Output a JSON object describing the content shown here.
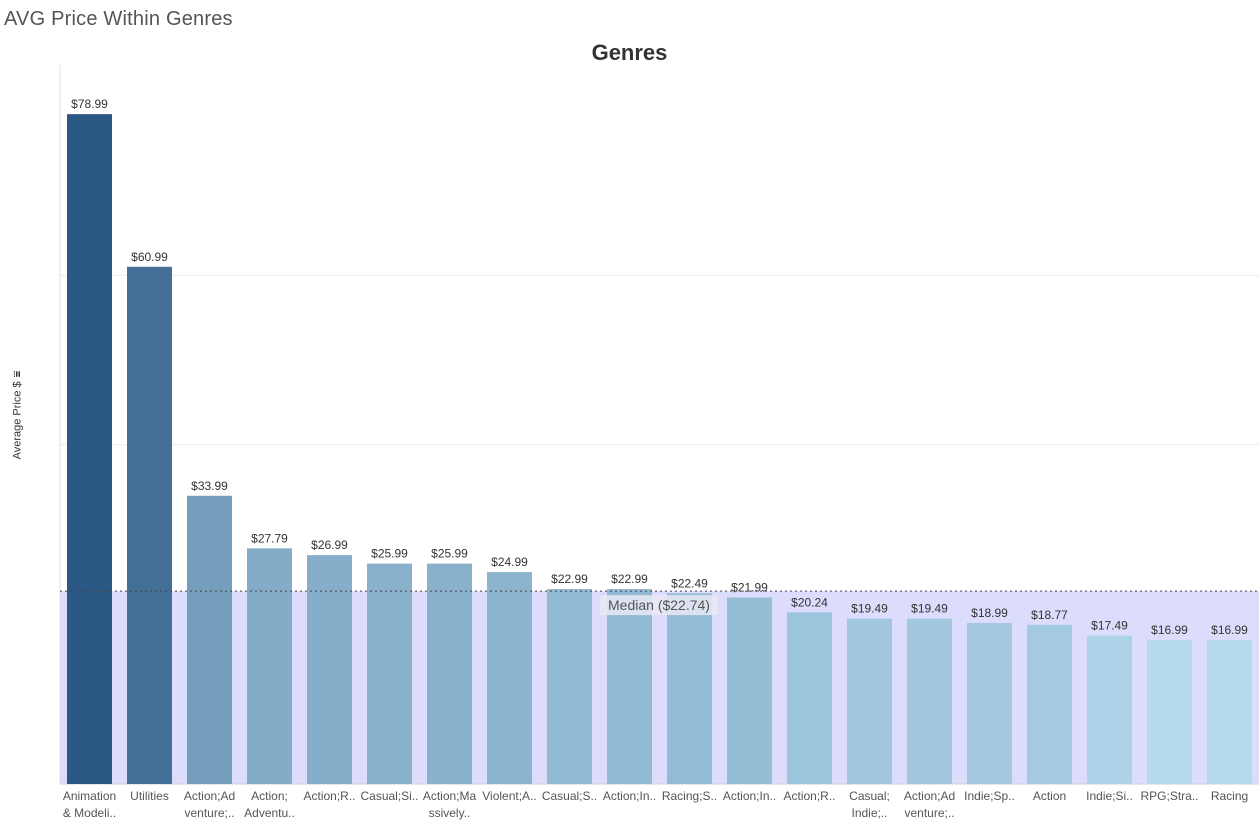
{
  "sheet_title": "AVG Price Within Genres",
  "y_axis_label": "Average Price $",
  "sort_icon": "sort-descending-icon",
  "chart_data": {
    "type": "bar",
    "title": "Genres",
    "xlabel": "",
    "ylabel": "Average Price $",
    "ylim": [
      0,
      80
    ],
    "grid": true,
    "categories": [
      [
        "Animation",
        "& Modeli.."
      ],
      [
        "Utilities"
      ],
      [
        "Action;Ad",
        "venture;.."
      ],
      [
        "Action;",
        "Adventu.."
      ],
      [
        "Action;R.."
      ],
      [
        "Casual;Si.."
      ],
      [
        "Action;Ma",
        "ssively.."
      ],
      [
        "Violent;A.."
      ],
      [
        "Casual;S.."
      ],
      [
        "Action;In.."
      ],
      [
        "Racing;S.."
      ],
      [
        "Action;In.."
      ],
      [
        "Action;R.."
      ],
      [
        "Casual;",
        "Indie;.."
      ],
      [
        "Action;Ad",
        "venture;.."
      ],
      [
        "Indie;Sp.."
      ],
      [
        "Action"
      ],
      [
        "Indie;Si.."
      ],
      [
        "RPG;Stra.."
      ],
      [
        "Racing"
      ]
    ],
    "values": [
      78.99,
      60.99,
      33.99,
      27.79,
      26.99,
      25.99,
      25.99,
      24.99,
      22.99,
      22.99,
      22.49,
      21.99,
      20.24,
      19.49,
      19.49,
      18.99,
      18.77,
      17.49,
      16.99,
      16.99
    ],
    "value_labels": [
      "$78.99",
      "$60.99",
      "$33.99",
      "$27.79",
      "$26.99",
      "$25.99",
      "$25.99",
      "$24.99",
      "$22.99",
      "$22.99",
      "$22.49",
      "$21.99",
      "$20.24",
      "$19.49",
      "$19.49",
      "$18.99",
      "$18.77",
      "$17.49",
      "$16.99",
      "$16.99"
    ],
    "reference_line": {
      "label": "Median ($22.74)",
      "value": 22.74,
      "band_color": "#dcdcfc"
    },
    "color_scale": {
      "low": "#b4daee",
      "high": "#2a5783"
    }
  }
}
